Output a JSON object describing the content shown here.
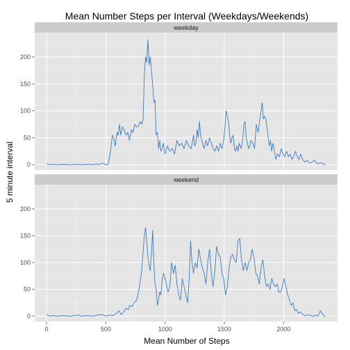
{
  "chart_data": {
    "type": "line",
    "title": "Mean Number Steps per Interval (Weekdays/Weekends)",
    "xlabel": "Mean Number of Steps",
    "ylabel": "5 minute interval",
    "xlim": [
      -100,
      2455
    ],
    "ylim": [
      -10,
      245
    ],
    "xticks": [
      0,
      500,
      1000,
      1500,
      2000
    ],
    "yticks": [
      0,
      50,
      100,
      150,
      200
    ],
    "grid": true,
    "line_color": "#3a7abf",
    "panel_background": "#e5e5e5",
    "strip_background": "#cccccc",
    "facets": [
      {
        "label": "weekday",
        "points": [
          [
            0,
            2
          ],
          [
            30,
            0
          ],
          [
            60,
            1
          ],
          [
            100,
            0
          ],
          [
            140,
            1
          ],
          [
            200,
            0
          ],
          [
            260,
            1
          ],
          [
            300,
            0
          ],
          [
            340,
            1
          ],
          [
            400,
            0
          ],
          [
            420,
            2
          ],
          [
            440,
            0
          ],
          [
            470,
            3
          ],
          [
            500,
            0
          ],
          [
            520,
            1
          ],
          [
            540,
            25
          ],
          [
            555,
            55
          ],
          [
            565,
            50
          ],
          [
            580,
            35
          ],
          [
            595,
            60
          ],
          [
            605,
            55
          ],
          [
            615,
            75
          ],
          [
            625,
            55
          ],
          [
            640,
            70
          ],
          [
            655,
            65
          ],
          [
            670,
            55
          ],
          [
            685,
            60
          ],
          [
            700,
            45
          ],
          [
            715,
            65
          ],
          [
            730,
            60
          ],
          [
            745,
            75
          ],
          [
            760,
            70
          ],
          [
            775,
            72
          ],
          [
            790,
            80
          ],
          [
            805,
            75
          ],
          [
            815,
            85
          ],
          [
            825,
            165
          ],
          [
            835,
            200
          ],
          [
            845,
            190
          ],
          [
            855,
            232
          ],
          [
            865,
            185
          ],
          [
            875,
            200
          ],
          [
            885,
            175
          ],
          [
            895,
            150
          ],
          [
            905,
            115
          ],
          [
            915,
            120
          ],
          [
            925,
            55
          ],
          [
            935,
            60
          ],
          [
            945,
            30
          ],
          [
            955,
            45
          ],
          [
            965,
            25
          ],
          [
            975,
            30
          ],
          [
            985,
            40
          ],
          [
            1000,
            20
          ],
          [
            1020,
            35
          ],
          [
            1040,
            25
          ],
          [
            1060,
            30
          ],
          [
            1080,
            20
          ],
          [
            1100,
            45
          ],
          [
            1120,
            35
          ],
          [
            1140,
            40
          ],
          [
            1160,
            30
          ],
          [
            1180,
            45
          ],
          [
            1200,
            35
          ],
          [
            1220,
            30
          ],
          [
            1240,
            55
          ],
          [
            1250,
            35
          ],
          [
            1260,
            40
          ],
          [
            1270,
            65
          ],
          [
            1280,
            50
          ],
          [
            1290,
            80
          ],
          [
            1300,
            55
          ],
          [
            1315,
            40
          ],
          [
            1330,
            30
          ],
          [
            1345,
            45
          ],
          [
            1360,
            35
          ],
          [
            1375,
            50
          ],
          [
            1390,
            40
          ],
          [
            1405,
            30
          ],
          [
            1420,
            25
          ],
          [
            1435,
            35
          ],
          [
            1450,
            25
          ],
          [
            1465,
            40
          ],
          [
            1480,
            30
          ],
          [
            1495,
            45
          ],
          [
            1505,
            70
          ],
          [
            1515,
            100
          ],
          [
            1525,
            90
          ],
          [
            1535,
            80
          ],
          [
            1545,
            55
          ],
          [
            1555,
            40
          ],
          [
            1565,
            50
          ],
          [
            1575,
            55
          ],
          [
            1585,
            30
          ],
          [
            1595,
            25
          ],
          [
            1605,
            35
          ],
          [
            1615,
            25
          ],
          [
            1625,
            40
          ],
          [
            1640,
            30
          ],
          [
            1655,
            45
          ],
          [
            1665,
            75
          ],
          [
            1675,
            80
          ],
          [
            1685,
            50
          ],
          [
            1695,
            40
          ],
          [
            1705,
            30
          ],
          [
            1715,
            35
          ],
          [
            1725,
            45
          ],
          [
            1740,
            40
          ],
          [
            1755,
            30
          ],
          [
            1770,
            75
          ],
          [
            1785,
            60
          ],
          [
            1800,
            85
          ],
          [
            1810,
            100
          ],
          [
            1820,
            115
          ],
          [
            1830,
            85
          ],
          [
            1840,
            90
          ],
          [
            1850,
            85
          ],
          [
            1860,
            70
          ],
          [
            1870,
            50
          ],
          [
            1880,
            35
          ],
          [
            1890,
            45
          ],
          [
            1900,
            25
          ],
          [
            1910,
            40
          ],
          [
            1920,
            30
          ],
          [
            1935,
            10
          ],
          [
            1950,
            20
          ],
          [
            1965,
            15
          ],
          [
            1980,
            30
          ],
          [
            1995,
            20
          ],
          [
            2010,
            15
          ],
          [
            2025,
            25
          ],
          [
            2040,
            15
          ],
          [
            2055,
            20
          ],
          [
            2070,
            10
          ],
          [
            2085,
            15
          ],
          [
            2100,
            25
          ],
          [
            2115,
            15
          ],
          [
            2130,
            10
          ],
          [
            2145,
            20
          ],
          [
            2160,
            10
          ],
          [
            2180,
            5
          ],
          [
            2200,
            8
          ],
          [
            2220,
            3
          ],
          [
            2240,
            5
          ],
          [
            2260,
            8
          ],
          [
            2280,
            3
          ],
          [
            2300,
            2
          ],
          [
            2320,
            4
          ],
          [
            2340,
            1
          ],
          [
            2355,
            0
          ]
        ]
      },
      {
        "label": "weekend",
        "points": [
          [
            0,
            3
          ],
          [
            30,
            0
          ],
          [
            60,
            1
          ],
          [
            100,
            0
          ],
          [
            140,
            1
          ],
          [
            200,
            0
          ],
          [
            260,
            2
          ],
          [
            300,
            0
          ],
          [
            340,
            1
          ],
          [
            400,
            0
          ],
          [
            430,
            2
          ],
          [
            470,
            3
          ],
          [
            500,
            0
          ],
          [
            530,
            2
          ],
          [
            560,
            1
          ],
          [
            590,
            5
          ],
          [
            610,
            10
          ],
          [
            630,
            3
          ],
          [
            650,
            8
          ],
          [
            670,
            15
          ],
          [
            690,
            12
          ],
          [
            700,
            20
          ],
          [
            720,
            18
          ],
          [
            740,
            25
          ],
          [
            760,
            30
          ],
          [
            780,
            50
          ],
          [
            800,
            80
          ],
          [
            815,
            120
          ],
          [
            825,
            150
          ],
          [
            835,
            165
          ],
          [
            845,
            140
          ],
          [
            855,
            110
          ],
          [
            865,
            95
          ],
          [
            875,
            85
          ],
          [
            885,
            115
          ],
          [
            895,
            160
          ],
          [
            905,
            100
          ],
          [
            915,
            60
          ],
          [
            925,
            50
          ],
          [
            935,
            20
          ],
          [
            945,
            30
          ],
          [
            955,
            45
          ],
          [
            965,
            40
          ],
          [
            975,
            65
          ],
          [
            985,
            80
          ],
          [
            995,
            75
          ],
          [
            1010,
            60
          ],
          [
            1025,
            45
          ],
          [
            1040,
            55
          ],
          [
            1055,
            100
          ],
          [
            1070,
            80
          ],
          [
            1085,
            95
          ],
          [
            1100,
            60
          ],
          [
            1115,
            40
          ],
          [
            1130,
            30
          ],
          [
            1145,
            70
          ],
          [
            1160,
            55
          ],
          [
            1175,
            40
          ],
          [
            1190,
            25
          ],
          [
            1205,
            75
          ],
          [
            1215,
            140
          ],
          [
            1225,
            105
          ],
          [
            1240,
            80
          ],
          [
            1255,
            100
          ],
          [
            1270,
            90
          ],
          [
            1285,
            125
          ],
          [
            1300,
            105
          ],
          [
            1315,
            90
          ],
          [
            1330,
            80
          ],
          [
            1345,
            60
          ],
          [
            1360,
            100
          ],
          [
            1375,
            125
          ],
          [
            1390,
            80
          ],
          [
            1405,
            55
          ],
          [
            1420,
            85
          ],
          [
            1435,
            130
          ],
          [
            1450,
            115
          ],
          [
            1465,
            110
          ],
          [
            1480,
            80
          ],
          [
            1495,
            70
          ],
          [
            1510,
            40
          ],
          [
            1525,
            55
          ],
          [
            1540,
            90
          ],
          [
            1555,
            110
          ],
          [
            1570,
            115
          ],
          [
            1585,
            105
          ],
          [
            1600,
            100
          ],
          [
            1615,
            140
          ],
          [
            1630,
            145
          ],
          [
            1645,
            105
          ],
          [
            1660,
            85
          ],
          [
            1675,
            100
          ],
          [
            1690,
            85
          ],
          [
            1705,
            100
          ],
          [
            1720,
            105
          ],
          [
            1735,
            125
          ],
          [
            1750,
            110
          ],
          [
            1765,
            80
          ],
          [
            1780,
            75
          ],
          [
            1795,
            60
          ],
          [
            1810,
            90
          ],
          [
            1825,
            105
          ],
          [
            1840,
            75
          ],
          [
            1855,
            55
          ],
          [
            1870,
            60
          ],
          [
            1885,
            50
          ],
          [
            1900,
            70
          ],
          [
            1915,
            60
          ],
          [
            1930,
            55
          ],
          [
            1945,
            60
          ],
          [
            1960,
            45
          ],
          [
            1975,
            45
          ],
          [
            1990,
            55
          ],
          [
            2005,
            70
          ],
          [
            2020,
            55
          ],
          [
            2035,
            40
          ],
          [
            2050,
            30
          ],
          [
            2065,
            20
          ],
          [
            2080,
            25
          ],
          [
            2095,
            10
          ],
          [
            2110,
            12
          ],
          [
            2125,
            5
          ],
          [
            2140,
            8
          ],
          [
            2155,
            5
          ],
          [
            2170,
            2
          ],
          [
            2190,
            1
          ],
          [
            2210,
            3
          ],
          [
            2230,
            1
          ],
          [
            2250,
            0
          ],
          [
            2270,
            2
          ],
          [
            2290,
            0
          ],
          [
            2310,
            10
          ],
          [
            2325,
            5
          ],
          [
            2340,
            0
          ],
          [
            2355,
            0
          ]
        ]
      }
    ]
  }
}
